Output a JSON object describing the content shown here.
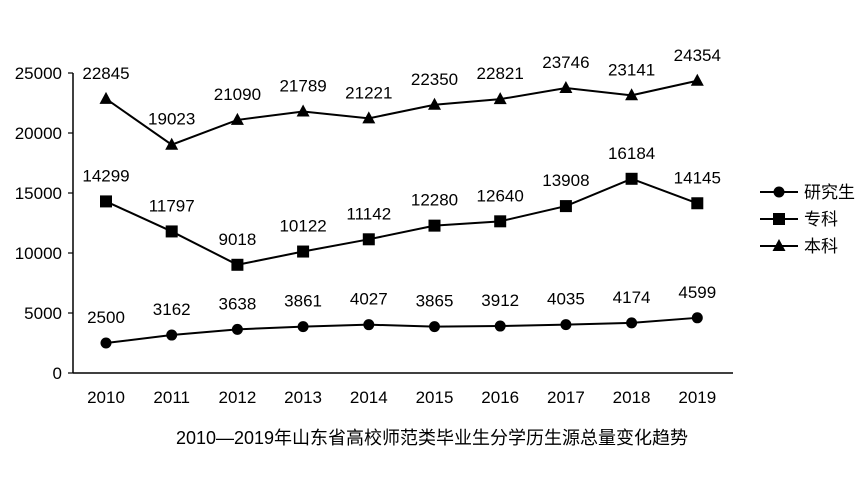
{
  "chart_data": {
    "type": "line",
    "title": "2010—2019年山东省高校师范类毕业生分学历生源总量变化趋势",
    "categories": [
      "2010",
      "2011",
      "2012",
      "2013",
      "2014",
      "2015",
      "2016",
      "2017",
      "2018",
      "2019"
    ],
    "ylim": [
      0,
      25000
    ],
    "yticks": [
      0,
      5000,
      10000,
      15000,
      20000,
      25000
    ],
    "grid": false,
    "legend_position": "right",
    "series": [
      {
        "name": "研究生",
        "marker": "circle",
        "values": [
          2500,
          3162,
          3638,
          3861,
          4027,
          3865,
          3912,
          4035,
          4174,
          4599
        ]
      },
      {
        "name": "专科",
        "marker": "square",
        "values": [
          14299,
          11797,
          9018,
          10122,
          11142,
          12280,
          12640,
          13908,
          16184,
          14145
        ]
      },
      {
        "name": "本科",
        "marker": "triangle",
        "values": [
          22845,
          19023,
          21090,
          21789,
          21221,
          22350,
          22821,
          23746,
          23141,
          24354
        ]
      }
    ],
    "line_color": "#000000"
  }
}
